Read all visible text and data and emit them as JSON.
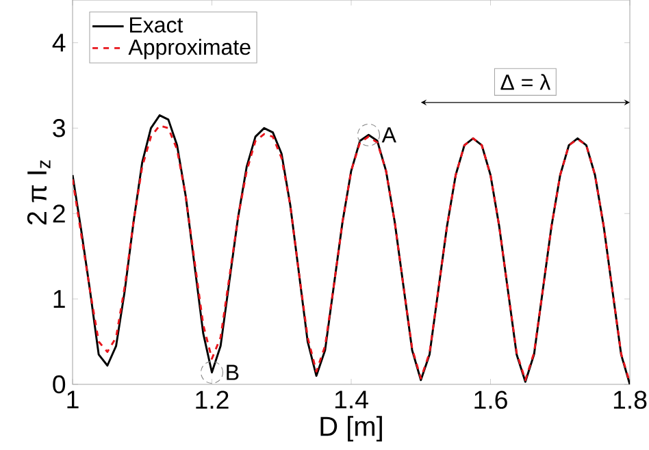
{
  "chart_data": {
    "type": "line",
    "xlabel": "D   [m]",
    "ylabel": "2 π I$_{z}$",
    "xlim": [
      1,
      1.8
    ],
    "ylim": [
      0,
      4.5
    ],
    "xticks": [
      1,
      1.2,
      1.4,
      1.6,
      1.8
    ],
    "yticks": [
      0,
      1,
      2,
      3,
      4
    ],
    "grid": false,
    "legend": "top left",
    "x": [
      1.0,
      1.0125,
      1.025,
      1.0375,
      1.05,
      1.0625,
      1.075,
      1.0875,
      1.1,
      1.1125,
      1.125,
      1.1375,
      1.15,
      1.1625,
      1.175,
      1.1875,
      1.2,
      1.2125,
      1.225,
      1.2375,
      1.25,
      1.2625,
      1.275,
      1.2875,
      1.3,
      1.3125,
      1.325,
      1.3375,
      1.35,
      1.3625,
      1.375,
      1.3875,
      1.4,
      1.4125,
      1.425,
      1.4375,
      1.45,
      1.4625,
      1.475,
      1.4875,
      1.5,
      1.5125,
      1.525,
      1.5375,
      1.55,
      1.5625,
      1.575,
      1.5875,
      1.6,
      1.6125,
      1.625,
      1.6375,
      1.65,
      1.6625,
      1.675,
      1.6875,
      1.7,
      1.7125,
      1.725,
      1.7375,
      1.75,
      1.7625,
      1.775,
      1.7875,
      1.8
    ],
    "series": [
      {
        "name": "Exact",
        "color": "#000000",
        "line_style": "solid",
        "values": [
          2.45,
          1.8,
          1.1,
          0.35,
          0.22,
          0.45,
          1.1,
          1.9,
          2.6,
          3.0,
          3.15,
          3.1,
          2.8,
          2.2,
          1.4,
          0.6,
          0.14,
          0.45,
          1.2,
          1.95,
          2.55,
          2.9,
          3.0,
          2.95,
          2.7,
          2.1,
          1.3,
          0.5,
          0.1,
          0.4,
          1.15,
          1.9,
          2.5,
          2.85,
          2.92,
          2.85,
          2.5,
          1.9,
          1.15,
          0.4,
          0.05,
          0.35,
          1.1,
          1.85,
          2.45,
          2.8,
          2.88,
          2.8,
          2.45,
          1.85,
          1.1,
          0.35,
          0.03,
          0.35,
          1.1,
          1.85,
          2.45,
          2.8,
          2.88,
          2.8,
          2.45,
          1.85,
          1.1,
          0.35,
          0.0
        ]
      },
      {
        "name": "Approximate",
        "color": "#e8141b",
        "line_style": "dashed",
        "values": [
          2.4,
          1.75,
          1.1,
          0.5,
          0.38,
          0.55,
          1.15,
          1.9,
          2.55,
          2.9,
          3.03,
          3.0,
          2.75,
          2.2,
          1.45,
          0.7,
          0.3,
          0.55,
          1.25,
          1.95,
          2.5,
          2.85,
          2.93,
          2.9,
          2.65,
          2.1,
          1.3,
          0.55,
          0.15,
          0.45,
          1.15,
          1.9,
          2.5,
          2.83,
          2.9,
          2.83,
          2.5,
          1.9,
          1.15,
          0.42,
          0.07,
          0.37,
          1.1,
          1.85,
          2.45,
          2.8,
          2.88,
          2.8,
          2.45,
          1.85,
          1.1,
          0.37,
          0.05,
          0.37,
          1.1,
          1.85,
          2.45,
          2.8,
          2.87,
          2.8,
          2.45,
          1.85,
          1.1,
          0.36,
          0.02
        ]
      }
    ],
    "annotations": [
      {
        "text": "A",
        "x": 1.425,
        "y": 2.92
      },
      {
        "text": "B",
        "x": 1.2,
        "y": 0.14
      },
      "Δ = λ"
    ]
  }
}
